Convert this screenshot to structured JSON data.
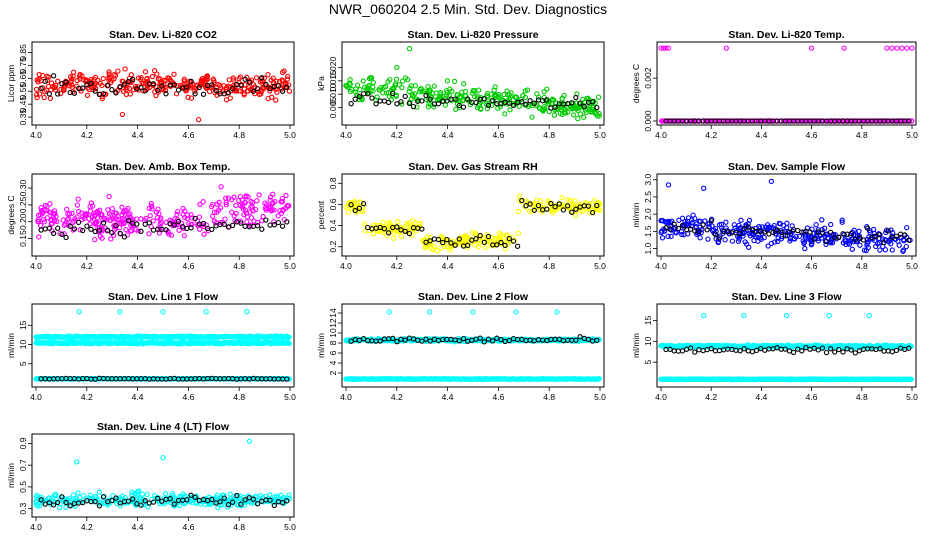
{
  "title": "NWR_060204  2.5 Min. Std. Dev. Diagnostics",
  "colors": {
    "red": "#ff0000",
    "green": "#00cc00",
    "magenta": "#ff00ff",
    "yellow": "#ffff00",
    "blue": "#0000ff",
    "cyan": "#00ffff",
    "black": "#000000"
  },
  "chart_data": [
    {
      "type": "scatter",
      "title": "Stan. Dev. Li-820 CO2",
      "ylabel": "Licor ppm",
      "color": "red",
      "xlim": [
        4.0,
        5.0
      ],
      "ylim": [
        0.32,
        0.9
      ],
      "xticks": [
        "4.0",
        "4.2",
        "4.4",
        "4.6",
        "4.8",
        "5.0"
      ],
      "yticks": [
        "0.35",
        "0.45",
        "0.55",
        "0.65",
        "0.75",
        "0.85"
      ],
      "series": [
        {
          "name": "main",
          "level": 0.6,
          "spread": 0.08,
          "outliers": [
            [
              4.64,
              0.33
            ],
            [
              4.34,
              0.37
            ]
          ]
        },
        {
          "name": "black",
          "level": 0.58,
          "spread": 0.06
        }
      ]
    },
    {
      "type": "scatter",
      "title": "Stan. Dev. Li-820 Pressure",
      "ylabel": "kPa",
      "color": "green",
      "xlim": [
        4.0,
        5.0
      ],
      "ylim": [
        0.0,
        0.028
      ],
      "xticks": [
        "4.0",
        "4.2",
        "4.4",
        "4.6",
        "4.8",
        "5.0"
      ],
      "yticks": [
        "0.005",
        "0.010",
        "0.015",
        "0.020"
      ],
      "series": [
        {
          "name": "main",
          "start": 0.012,
          "end": 0.005,
          "spread": 0.004,
          "outliers": [
            [
              4.25,
              0.027
            ],
            [
              4.2,
              0.02
            ]
          ]
        },
        {
          "name": "black",
          "start": 0.008,
          "end": 0.006,
          "spread": 0.002
        }
      ]
    },
    {
      "type": "scatter",
      "title": "Stan. Dev. Li-820 Temp.",
      "ylabel": "degrees C",
      "color": "magenta",
      "xlim": [
        4.0,
        5.0
      ],
      "ylim": [
        0.0,
        0.0035
      ],
      "xticks": [
        "4.0",
        "4.2",
        "4.4",
        "4.6",
        "4.8",
        "5.0"
      ],
      "yticks": [
        "0.000",
        "0.002"
      ],
      "series": [
        {
          "name": "main",
          "level": 0.0,
          "spread": 0.0,
          "top_points": [
            4.0,
            4.01,
            4.02,
            4.03,
            4.26,
            4.6,
            4.73,
            4.9,
            4.92,
            4.94,
            4.96,
            4.98,
            5.0
          ],
          "top_value": 0.0034
        },
        {
          "name": "black",
          "level": 0.0,
          "spread": 0.0
        }
      ]
    },
    {
      "type": "scatter",
      "title": "Stan. Dev. Amb. Box Temp.",
      "ylabel": "degrees C",
      "color": "magenta",
      "xlim": [
        4.0,
        5.0
      ],
      "ylim": [
        0.11,
        0.33
      ],
      "xticks": [
        "4.0",
        "4.2",
        "4.4",
        "4.6",
        "4.8",
        "5.0"
      ],
      "yticks": [
        "0.15",
        "0.20",
        "0.25",
        "0.30"
      ],
      "series": [
        {
          "name": "main",
          "start": 0.21,
          "end": 0.2,
          "spread": 0.04,
          "step": {
            "at": 4.68,
            "after": 0.24
          }
        },
        {
          "name": "black",
          "start": 0.18,
          "end": 0.19,
          "spread": 0.02
        }
      ]
    },
    {
      "type": "scatter",
      "title": "Stan. Dev. Gas Stream RH",
      "ylabel": "percent",
      "color": "yellow",
      "xlim": [
        4.0,
        5.0
      ],
      "ylim": [
        0.15,
        0.85
      ],
      "xticks": [
        "4.0",
        "4.2",
        "4.4",
        "4.6",
        "4.8",
        "5.0"
      ],
      "yticks": [
        "0.2",
        "0.4",
        "0.6",
        "0.8"
      ],
      "segments": [
        [
          4.0,
          4.07,
          0.58
        ],
        [
          4.07,
          4.3,
          0.37
        ],
        [
          4.3,
          4.5,
          0.24
        ],
        [
          4.5,
          4.68,
          0.26
        ],
        [
          4.68,
          5.0,
          0.58
        ]
      ],
      "series": [
        {
          "name": "main",
          "spread": 0.06
        },
        {
          "name": "black",
          "spread": 0.05
        }
      ]
    },
    {
      "type": "scatter",
      "title": "Stan. Dev. Sample Flow",
      "ylabel": "ml/min",
      "color": "blue",
      "xlim": [
        4.0,
        5.0
      ],
      "ylim": [
        0.9,
        3.05
      ],
      "xticks": [
        "4.0",
        "4.2",
        "4.4",
        "4.6",
        "4.8",
        "5.0"
      ],
      "yticks": [
        "1.0",
        "1.5",
        "2.0",
        "2.5",
        "3.0"
      ],
      "series": [
        {
          "name": "main",
          "start": 1.65,
          "end": 1.2,
          "spread": 0.3,
          "outliers": [
            [
              4.44,
              2.95
            ],
            [
              4.03,
              2.85
            ],
            [
              4.17,
              2.75
            ]
          ]
        },
        {
          "name": "black",
          "start": 1.6,
          "end": 1.3,
          "spread": 0.2
        }
      ]
    },
    {
      "type": "scatter",
      "title": "Stan. Dev. Line 1 Flow",
      "ylabel": "ml/min",
      "color": "cyan",
      "xlim": [
        4.0,
        5.0
      ],
      "ylim": [
        0.0,
        19.5
      ],
      "xticks": [
        "4.0",
        "4.2",
        "4.4",
        "4.6",
        "4.8",
        "5.0"
      ],
      "yticks": [
        "5",
        "10",
        "15"
      ],
      "bands": [
        12.0,
        10.4,
        1.1
      ],
      "series": [
        {
          "name": "main",
          "spread": 0.35,
          "outliers": [
            [
              4.17,
              18.5
            ],
            [
              4.33,
              18.5
            ],
            [
              4.5,
              18.5
            ],
            [
              4.67,
              18.5
            ],
            [
              4.83,
              18.5
            ]
          ]
        },
        {
          "name": "black",
          "level": 1.1,
          "spread": 0.12
        }
      ]
    },
    {
      "type": "scatter",
      "title": "Stan. Dev. Line 2 Flow",
      "ylabel": "ml/min",
      "color": "cyan",
      "xlim": [
        4.0,
        5.0
      ],
      "ylim": [
        0.0,
        15.0
      ],
      "xticks": [
        "4.0",
        "4.2",
        "4.4",
        "4.6",
        "4.8",
        "5.0"
      ],
      "yticks": [
        "2",
        "4",
        "6",
        "8",
        "10",
        "12",
        "14"
      ],
      "bands": [
        8.6,
        0.8
      ],
      "series": [
        {
          "name": "main",
          "spread": 0.45,
          "outliers": [
            [
              4.17,
              14.2
            ],
            [
              4.33,
              14.2
            ],
            [
              4.5,
              14.2
            ],
            [
              4.67,
              14.2
            ],
            [
              4.83,
              14.2
            ]
          ]
        },
        {
          "name": "black",
          "level": 8.6,
          "spread": 0.4
        }
      ]
    },
    {
      "type": "scatter",
      "title": "Stan. Dev. Line 3 Flow",
      "ylabel": "ml/min",
      "color": "cyan",
      "xlim": [
        4.0,
        5.0
      ],
      "ylim": [
        0.0,
        18.0
      ],
      "xticks": [
        "4.0",
        "4.2",
        "4.4",
        "4.6",
        "4.8",
        "5.0"
      ],
      "yticks": [
        "5",
        "10",
        "15"
      ],
      "bands": [
        8.8,
        0.9
      ],
      "series": [
        {
          "name": "main",
          "spread": 0.5,
          "outliers": [
            [
              4.17,
              16.2
            ],
            [
              4.33,
              16.2
            ],
            [
              4.5,
              16.2
            ],
            [
              4.67,
              16.2
            ],
            [
              4.83,
              16.2
            ]
          ]
        },
        {
          "name": "black",
          "level": 8.0,
          "spread": 0.5
        }
      ]
    },
    {
      "type": "scatter",
      "title": "Stan. Dev. Line 4 (LT) Flow",
      "ylabel": "ml/min",
      "color": "cyan",
      "xlim": [
        4.0,
        5.0
      ],
      "ylim": [
        0.26,
        0.95
      ],
      "xticks": [
        "4.0",
        "4.2",
        "4.4",
        "4.6",
        "4.8",
        "5.0"
      ],
      "yticks": [
        "0.3",
        "0.5",
        "0.7",
        "0.9"
      ],
      "series": [
        {
          "name": "main",
          "level": 0.38,
          "spread": 0.05,
          "outliers": [
            [
              4.16,
              0.73
            ],
            [
              4.5,
              0.77
            ],
            [
              4.84,
              0.92
            ]
          ]
        },
        {
          "name": "black",
          "level": 0.37,
          "spread": 0.05
        }
      ]
    }
  ]
}
